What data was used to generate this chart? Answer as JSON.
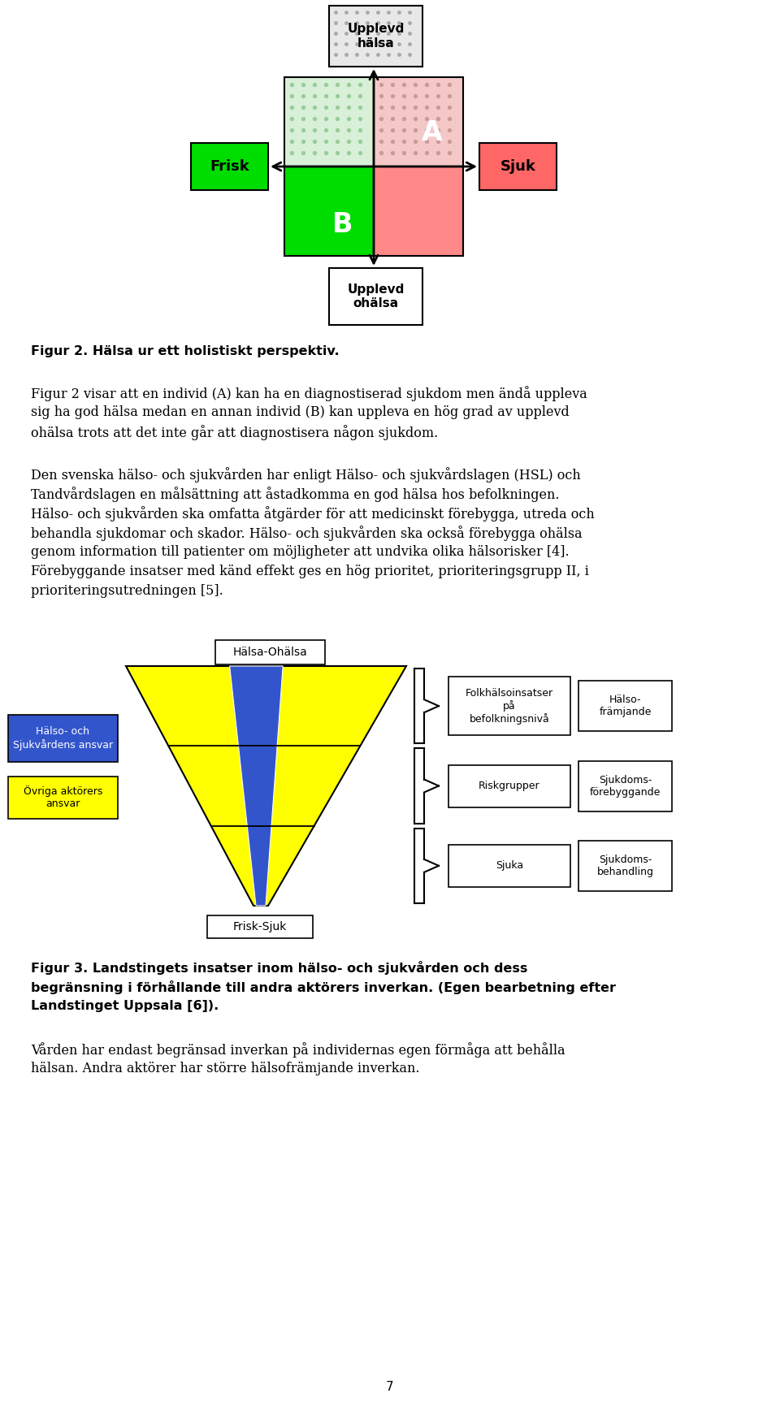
{
  "fig_width": 9.6,
  "fig_height": 17.26,
  "bg_color": "#ffffff",
  "fig1_title": "Figur 2. Hälsa ur ett holistiskt perspektiv.",
  "fig2_caption_line1": "Figur 3. Landstingets insatser inom hälso- och sjukvården och dess",
  "fig2_caption_line2": "begränsning i förhållande till andra aktörers inverkan. (Egen bearbetning efter",
  "fig2_caption_line3": "Landstinget Uppsala [6]).",
  "para1": "Figur 2 visar att en individ (A) kan ha en diagnostiserad sjukdom men ändå uppleva sig ha god hälsa medan en annan individ (B) kan uppleva en hög grad av upplevd ohälsa trots att det inte går att diagnostisera någon sjukdom.",
  "para2_lines": [
    "Den svenska hälso- och sjukvården har enligt Hälso- och sjukvårdslagen (HSL) och",
    "Tandvårdslagen en målsättning att åstadkomma en god hälsa hos befolkningen.",
    "Hälso- och sjukvården ska omfatta åtgärder för att medicinskt förebygga, utreda och",
    "behandla sjukdomar och skador. Hälso- och sjukvården ska också förebygga ohälsa",
    "genom information till patienter om möjligheter att undvika olika hälsorisker [4].",
    "Förebyggande insatser med känd effekt ges en hög prioritet, prioriteringsgrupp II, i",
    "prioriteringsutredningen [5]."
  ],
  "para1_lines": [
    "Figur 2 visar att en individ (A) kan ha en diagnostiserad sjukdom men ändå uppleva",
    "sig ha god hälsa medan en annan individ (B) kan uppleva en hög grad av upplevd",
    "ohälsa trots att det inte går att diagnostisera någon sjukdom."
  ],
  "para3_lines": [
    "Vården har endast begränsad inverkan på individernas egen förmåga att behålla",
    "hälsan. Andra aktörer har större hälsofrämjande inverkan."
  ],
  "page_number": "7",
  "colors": {
    "green_bright": "#00dd00",
    "red_pink": "#ff6666",
    "yellow": "#ffff00",
    "blue": "#3355cc",
    "white": "#ffffff",
    "black": "#000000"
  }
}
